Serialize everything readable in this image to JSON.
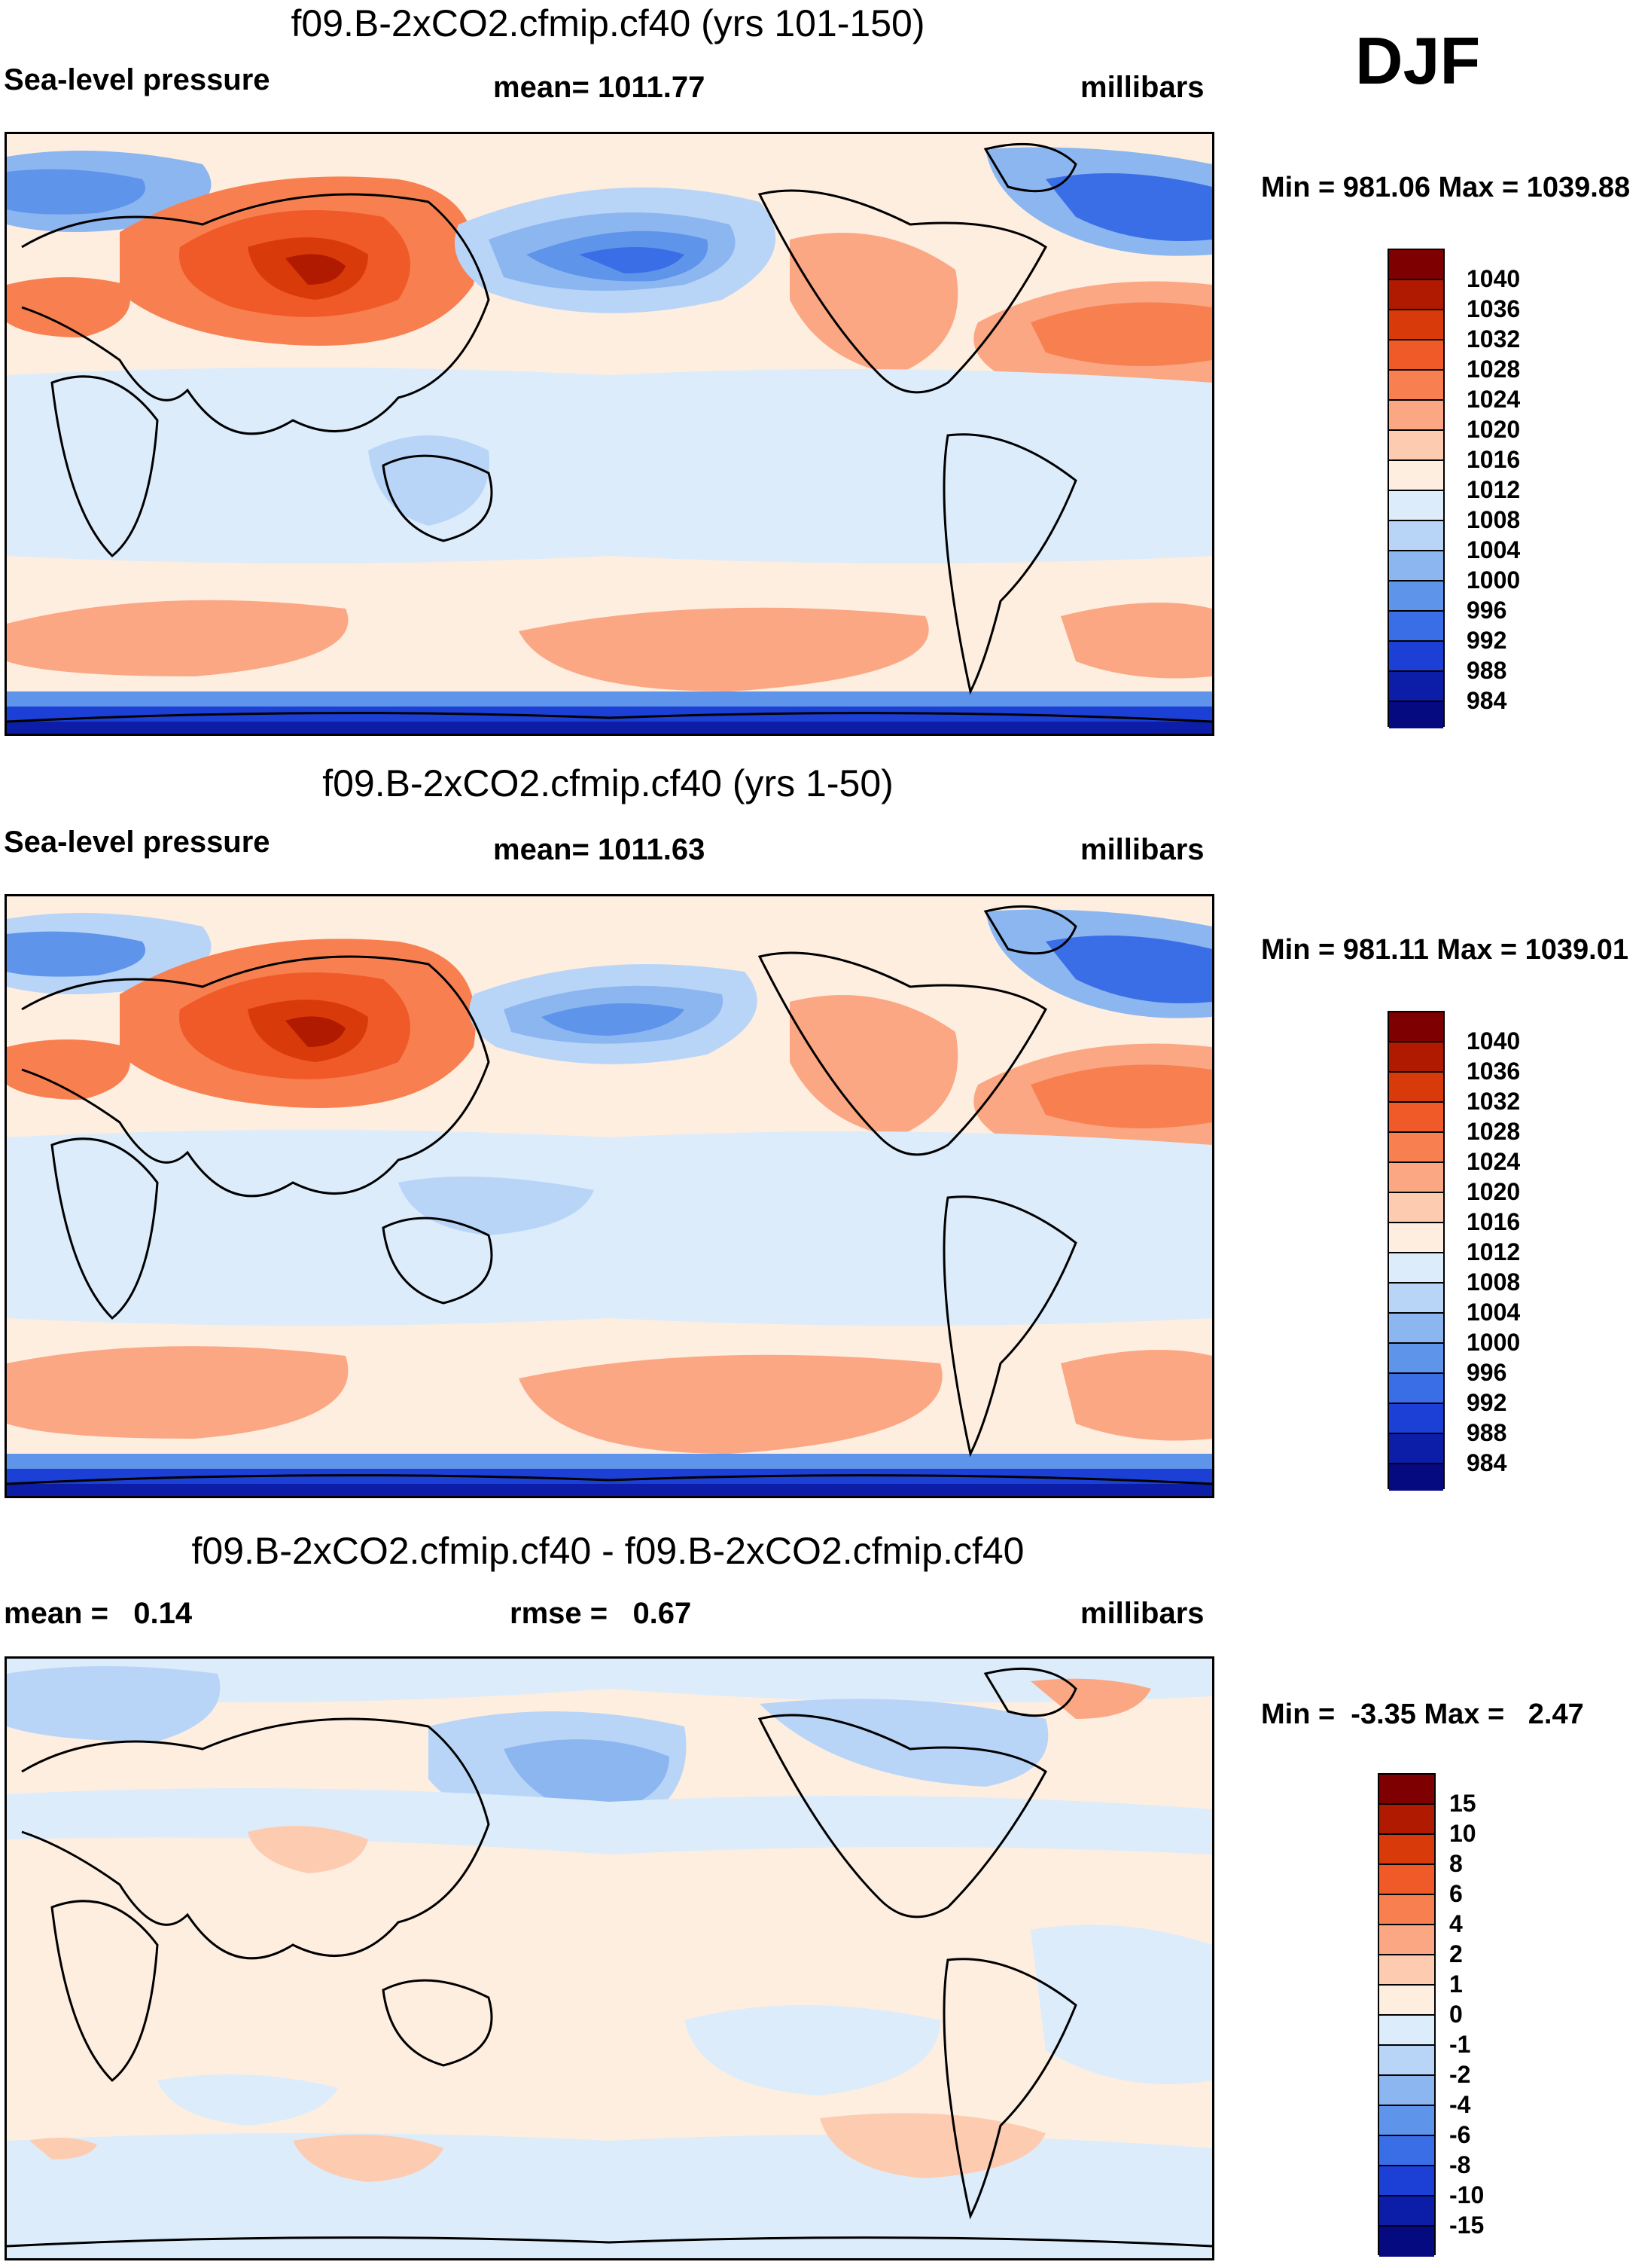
{
  "season": "DJF",
  "panels": [
    {
      "title": "f09.B-2xCO2.cfmip.cf40 (yrs 101-150)",
      "left": "Sea-level pressure",
      "center": "mean= 1011.77",
      "right": "millibars",
      "minmax": "Min = 981.06 Max = 1039.88",
      "legend_labels": [
        "1040",
        "1036",
        "1032",
        "1028",
        "1024",
        "1020",
        "1016",
        "1012",
        "1008",
        "1004",
        "1000",
        "996",
        "992",
        "988",
        "984"
      ]
    },
    {
      "title": "f09.B-2xCO2.cfmip.cf40 (yrs 1-50)",
      "left": "Sea-level pressure",
      "center": "mean= 1011.63",
      "right": "millibars",
      "minmax": "Min = 981.11 Max = 1039.01",
      "legend_labels": [
        "1040",
        "1036",
        "1032",
        "1028",
        "1024",
        "1020",
        "1016",
        "1012",
        "1008",
        "1004",
        "1000",
        "996",
        "992",
        "988",
        "984"
      ]
    },
    {
      "title": "f09.B-2xCO2.cfmip.cf40 - f09.B-2xCO2.cfmip.cf40",
      "left": "mean =   0.14",
      "center": "rmse =   0.67",
      "right": "millibars",
      "minmax": "Min =  -3.35 Max =   2.47",
      "legend_labels": [
        "15",
        "10",
        "8",
        "6",
        "4",
        "2",
        "1",
        "0",
        "-1",
        "-2",
        "-4",
        "-6",
        "-8",
        "-10",
        "-15"
      ]
    }
  ],
  "palette": [
    "#7f0000",
    "#b01a00",
    "#d83a0a",
    "#f05a28",
    "#f88050",
    "#fba784",
    "#fdccb0",
    "#fdeee0",
    "#dcecfb",
    "#b8d5f8",
    "#8cb6f0",
    "#5e94ea",
    "#3a6ee6",
    "#1c3fd6",
    "#0c1ea8",
    "#060a80"
  ]
}
